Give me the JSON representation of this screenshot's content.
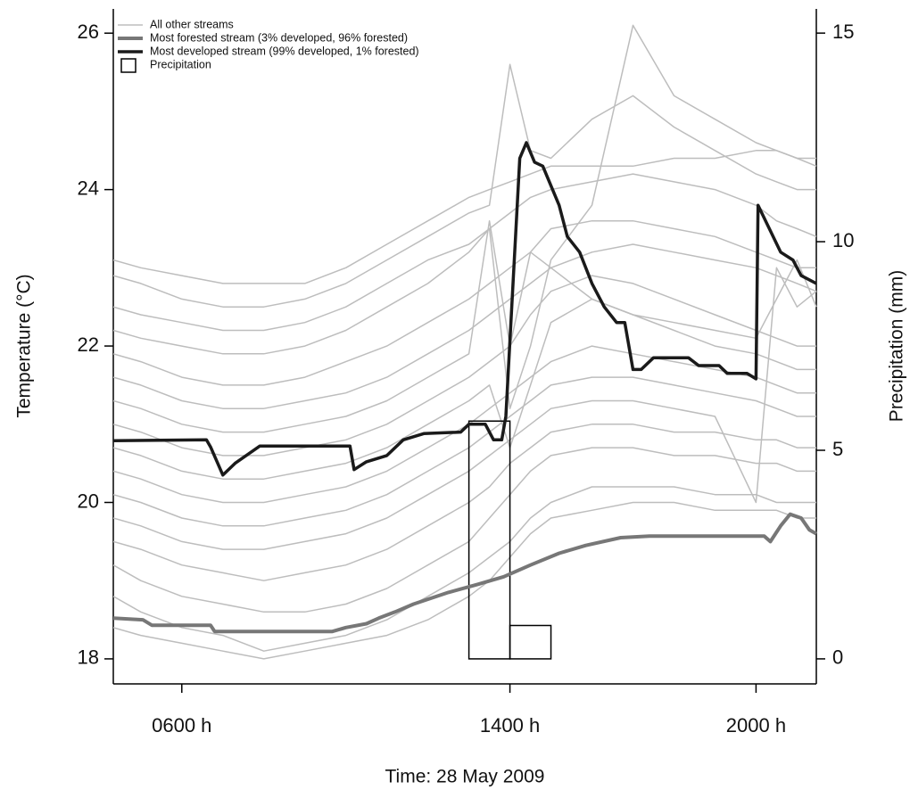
{
  "chart_data": {
    "type": "line",
    "xlabel": "Time: 28 May 2009",
    "ylabel": "Temperature (°C)",
    "y2label": "Precipitation (mm)",
    "xlim": [
      4.33,
      21.47
    ],
    "xticks": [
      {
        "value": 6,
        "label": "0600 h"
      },
      {
        "value": 14,
        "label": "1400 h"
      },
      {
        "value": 20,
        "label": "2000 h"
      }
    ],
    "ylim": [
      17.68,
      26.31
    ],
    "yticks": [
      18,
      20,
      22,
      24,
      26
    ],
    "y2lim": [
      -0.6,
      15.58
    ],
    "y2ticks": [
      0,
      5,
      10,
      15
    ],
    "legend": "top-left",
    "other_streams": {
      "name": "All other streams",
      "color": "#bdbdbd",
      "x": [
        4.33,
        5,
        6,
        7,
        8,
        9,
        10,
        11,
        12,
        13,
        13.5,
        14,
        14.5,
        15,
        16,
        17,
        18,
        19,
        20,
        20.5,
        21,
        21.47
      ],
      "lines": [
        [
          23.1,
          23.0,
          22.9,
          22.8,
          22.8,
          22.8,
          23.0,
          23.3,
          23.6,
          23.9,
          24.0,
          24.1,
          24.2,
          24.3,
          24.3,
          24.3,
          24.4,
          24.4,
          24.5,
          24.5,
          24.4,
          24.4
        ],
        [
          22.9,
          22.8,
          22.6,
          22.5,
          22.5,
          22.6,
          22.8,
          23.1,
          23.4,
          23.7,
          23.8,
          25.6,
          24.5,
          24.4,
          24.9,
          25.2,
          24.8,
          24.5,
          24.2,
          24.1,
          24.0,
          24.0
        ],
        [
          22.5,
          22.4,
          22.3,
          22.2,
          22.2,
          22.3,
          22.5,
          22.8,
          23.1,
          23.3,
          23.5,
          23.7,
          23.9,
          24.0,
          24.1,
          24.2,
          24.1,
          24.0,
          23.8,
          23.6,
          23.5,
          23.4
        ],
        [
          22.2,
          22.1,
          22.0,
          21.9,
          21.9,
          22.0,
          22.2,
          22.5,
          22.8,
          23.2,
          23.5,
          21.2,
          22.0,
          23.1,
          23.8,
          26.1,
          25.2,
          24.9,
          24.6,
          24.5,
          24.4,
          24.3
        ],
        [
          21.9,
          21.8,
          21.6,
          21.5,
          21.5,
          21.6,
          21.8,
          22.0,
          22.3,
          22.6,
          22.8,
          23.0,
          23.2,
          23.5,
          23.6,
          23.6,
          23.5,
          23.4,
          23.2,
          23.1,
          23.0,
          23.0
        ],
        [
          21.6,
          21.5,
          21.3,
          21.2,
          21.2,
          21.3,
          21.4,
          21.6,
          21.9,
          22.2,
          22.4,
          22.6,
          22.8,
          23.0,
          23.2,
          23.3,
          23.2,
          23.1,
          23.0,
          22.9,
          22.8,
          22.7
        ],
        [
          21.3,
          21.2,
          21.0,
          20.9,
          20.9,
          21.0,
          21.1,
          21.3,
          21.6,
          21.9,
          23.6,
          22.0,
          23.2,
          23.0,
          22.6,
          22.4,
          22.3,
          22.2,
          22.1,
          22.6,
          23.1,
          22.5
        ],
        [
          21.0,
          20.9,
          20.7,
          20.6,
          20.6,
          20.7,
          20.8,
          21.0,
          21.3,
          21.6,
          21.8,
          22.0,
          22.4,
          22.7,
          22.9,
          22.8,
          22.6,
          22.4,
          22.2,
          22.1,
          22.0,
          22.0
        ],
        [
          20.7,
          20.6,
          20.4,
          20.3,
          20.3,
          20.4,
          20.5,
          20.7,
          21.0,
          21.3,
          21.5,
          20.7,
          21.5,
          22.3,
          22.6,
          22.4,
          22.2,
          22.0,
          21.9,
          21.8,
          21.7,
          21.7
        ],
        [
          20.4,
          20.3,
          20.1,
          20.0,
          20.0,
          20.1,
          20.2,
          20.4,
          20.7,
          21.0,
          21.2,
          21.4,
          21.6,
          21.8,
          22.0,
          21.9,
          21.8,
          21.7,
          21.6,
          21.5,
          21.4,
          21.4
        ],
        [
          20.1,
          20.0,
          19.8,
          19.7,
          19.7,
          19.8,
          19.9,
          20.1,
          20.4,
          20.7,
          20.9,
          21.1,
          21.3,
          21.5,
          21.6,
          21.6,
          21.5,
          21.4,
          21.3,
          21.2,
          21.1,
          21.1
        ],
        [
          19.8,
          19.7,
          19.5,
          19.4,
          19.4,
          19.5,
          19.6,
          19.8,
          20.1,
          20.4,
          20.6,
          20.8,
          21.0,
          21.2,
          21.3,
          21.3,
          21.2,
          21.1,
          20.0,
          23.0,
          22.5,
          22.7
        ],
        [
          19.5,
          19.4,
          19.2,
          19.1,
          19.0,
          19.1,
          19.2,
          19.4,
          19.7,
          20.0,
          20.2,
          20.5,
          20.7,
          20.9,
          21.0,
          21.0,
          20.9,
          20.9,
          20.8,
          20.8,
          20.7,
          20.7
        ],
        [
          19.2,
          19.0,
          18.8,
          18.7,
          18.6,
          18.6,
          18.7,
          18.9,
          19.2,
          19.5,
          19.8,
          20.1,
          20.4,
          20.6,
          20.7,
          20.7,
          20.6,
          20.6,
          20.5,
          20.5,
          20.4,
          20.4
        ],
        [
          18.8,
          18.6,
          18.4,
          18.3,
          18.1,
          18.2,
          18.3,
          18.5,
          18.8,
          19.1,
          19.3,
          19.5,
          19.8,
          20.0,
          20.2,
          20.2,
          20.2,
          20.1,
          20.1,
          20.0,
          20.0,
          20.0
        ],
        [
          18.4,
          18.3,
          18.2,
          18.1,
          18.0,
          18.1,
          18.2,
          18.3,
          18.5,
          18.8,
          19.0,
          19.3,
          19.6,
          19.8,
          19.9,
          20.0,
          20.0,
          19.9,
          19.9,
          19.9,
          19.8,
          19.8
        ]
      ]
    },
    "series": [
      {
        "name": "Most forested stream (3% developed, 96% forested)",
        "color": "#777777",
        "x": [
          4.33,
          5.05,
          5.27,
          6.7,
          6.8,
          9.67,
          10.0,
          10.5,
          10.8,
          11.2,
          11.65,
          12.5,
          13.2,
          13.85,
          14.5,
          15.2,
          15.85,
          16.7,
          17.4,
          20.2,
          20.35,
          20.6,
          20.83,
          21.1,
          21.3,
          21.47
        ],
        "values": [
          18.52,
          18.5,
          18.43,
          18.43,
          18.35,
          18.35,
          18.4,
          18.45,
          18.52,
          18.6,
          18.7,
          18.85,
          18.95,
          19.05,
          19.2,
          19.35,
          19.45,
          19.55,
          19.57,
          19.57,
          19.5,
          19.7,
          19.85,
          19.8,
          19.65,
          19.6
        ]
      },
      {
        "name": "Most developed stream (99% developed, 1% forested)",
        "color": "#1a1a1a",
        "x": [
          4.33,
          6.6,
          6.7,
          7.0,
          7.3,
          7.9,
          10.1,
          10.2,
          10.5,
          11.0,
          11.4,
          11.9,
          12.8,
          13.0,
          13.4,
          13.6,
          13.8,
          13.9,
          14.24,
          14.4,
          14.6,
          14.8,
          15.2,
          15.4,
          15.7,
          16.0,
          16.3,
          16.6,
          16.8,
          17.0,
          17.2,
          17.5,
          18.35,
          18.6,
          19.1,
          19.3,
          19.78,
          20.0,
          20.05,
          20.6,
          20.9,
          21.1,
          21.47
        ],
        "values": [
          20.79,
          20.8,
          20.71,
          20.35,
          20.5,
          20.72,
          20.72,
          20.42,
          20.52,
          20.6,
          20.8,
          20.88,
          20.9,
          21.0,
          21.0,
          20.8,
          20.8,
          21.1,
          24.4,
          24.6,
          24.35,
          24.3,
          23.8,
          23.4,
          23.2,
          22.8,
          22.5,
          22.3,
          22.3,
          21.7,
          21.7,
          21.85,
          21.85,
          21.75,
          21.75,
          21.65,
          21.65,
          21.58,
          23.8,
          23.2,
          23.1,
          22.9,
          22.8
        ]
      }
    ],
    "precipitation": {
      "name": "Precipitation",
      "axis": "y2",
      "color": "#000000",
      "bins": [
        13,
        14,
        15
      ],
      "values": [
        5.7,
        0.8
      ]
    }
  }
}
